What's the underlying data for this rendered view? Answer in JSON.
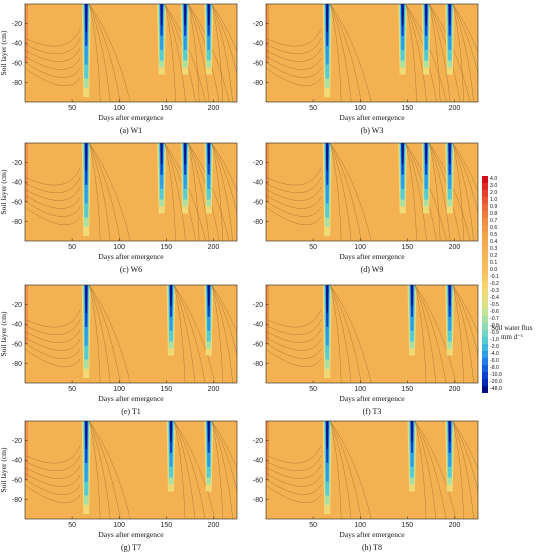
{
  "figure": {
    "legend_title": "Soil water flux",
    "legend_unit": "mm d⁻¹",
    "legend": [
      {
        "label": "4.0",
        "color": "#d10f1a"
      },
      {
        "label": "3.0",
        "color": "#dd2b22"
      },
      {
        "label": "2.0",
        "color": "#e4402b"
      },
      {
        "label": "1.0",
        "color": "#e85634"
      },
      {
        "label": "0.9",
        "color": "#ea6a3a"
      },
      {
        "label": "0.8",
        "color": "#ec7c40"
      },
      {
        "label": "0.7",
        "color": "#ee8b44"
      },
      {
        "label": "0.6",
        "color": "#f09848"
      },
      {
        "label": "0.5",
        "color": "#f2a34b"
      },
      {
        "label": "0.4",
        "color": "#f3ab4e"
      },
      {
        "label": "0.3",
        "color": "#f4b152"
      },
      {
        "label": "0.2",
        "color": "#f5b656"
      },
      {
        "label": "0.1",
        "color": "#f6bb5b"
      },
      {
        "label": "0.0",
        "color": "#f7bf61"
      },
      {
        "label": "-0.1",
        "color": "#f7c868"
      },
      {
        "label": "-0.2",
        "color": "#f5d26f"
      },
      {
        "label": "-0.3",
        "color": "#f0da78"
      },
      {
        "label": "-0.4",
        "color": "#e6df80"
      },
      {
        "label": "-0.5",
        "color": "#d7e28a"
      },
      {
        "label": "-0.6",
        "color": "#c3e396"
      },
      {
        "label": "-0.7",
        "color": "#a9e1a4"
      },
      {
        "label": "-0.8",
        "color": "#8edcb4"
      },
      {
        "label": "-0.9",
        "color": "#72d5c4"
      },
      {
        "label": "-1.0",
        "color": "#57cbd3"
      },
      {
        "label": "-2.0",
        "color": "#3fb6e0"
      },
      {
        "label": "-4.0",
        "color": "#2d9be6"
      },
      {
        "label": "-6.0",
        "color": "#217ee6"
      },
      {
        "label": "-8.0",
        "color": "#1660de"
      },
      {
        "label": "-10.0",
        "color": "#0d43cf"
      },
      {
        "label": "-20.0",
        "color": "#0727b5"
      },
      {
        "label": "-48.0",
        "color": "#020f86"
      }
    ]
  },
  "chart_data": [
    {
      "type": "heatmap",
      "panel": "(a) W1",
      "xlabel": "Days after emergence",
      "ylabel": "Soil layer (cm)",
      "x_ticks": [
        50,
        100,
        150,
        200
      ],
      "y_ticks": [
        -20,
        -40,
        -60,
        -80
      ],
      "xlim": [
        0,
        225
      ],
      "ylim": [
        -100,
        0
      ],
      "irrigation_days": [
        65,
        145,
        170,
        195
      ],
      "show_ylabel": true
    },
    {
      "type": "heatmap",
      "panel": "(b) W3",
      "xlabel": "Days after emergence",
      "ylabel": "",
      "x_ticks": [
        50,
        100,
        150,
        200
      ],
      "y_ticks": [
        -20,
        -40,
        -60,
        -80
      ],
      "xlim": [
        0,
        225
      ],
      "ylim": [
        -100,
        0
      ],
      "irrigation_days": [
        65,
        145,
        170,
        195
      ],
      "show_ylabel": false
    },
    {
      "type": "heatmap",
      "panel": "(c) W6",
      "xlabel": "Days after emergence",
      "ylabel": "Soil layer (cm)",
      "x_ticks": [
        50,
        100,
        150,
        200
      ],
      "y_ticks": [
        -20,
        -40,
        -60,
        -80
      ],
      "xlim": [
        0,
        225
      ],
      "ylim": [
        -100,
        0
      ],
      "irrigation_days": [
        65,
        145,
        170,
        195
      ],
      "show_ylabel": true
    },
    {
      "type": "heatmap",
      "panel": "(d) W9",
      "xlabel": "Days after emergence",
      "ylabel": "",
      "x_ticks": [
        50,
        100,
        150,
        200
      ],
      "y_ticks": [
        -20,
        -40,
        -60,
        -80
      ],
      "xlim": [
        0,
        225
      ],
      "ylim": [
        -100,
        0
      ],
      "irrigation_days": [
        65,
        145,
        170,
        195
      ],
      "show_ylabel": false
    },
    {
      "type": "heatmap",
      "panel": "(e) T1",
      "xlabel": "Days after emergence",
      "ylabel": "Soil layer (cm)",
      "x_ticks": [
        50,
        100,
        150,
        200
      ],
      "y_ticks": [
        -20,
        -40,
        -60,
        -80
      ],
      "xlim": [
        0,
        225
      ],
      "ylim": [
        -100,
        0
      ],
      "irrigation_days": [
        65,
        155,
        195
      ],
      "show_ylabel": true
    },
    {
      "type": "heatmap",
      "panel": "(f) T3",
      "xlabel": "Days after emergence",
      "ylabel": "",
      "x_ticks": [
        50,
        100,
        150,
        200
      ],
      "y_ticks": [
        -20,
        -40,
        -60,
        -80
      ],
      "xlim": [
        0,
        225
      ],
      "ylim": [
        -100,
        0
      ],
      "irrigation_days": [
        65,
        155,
        195
      ],
      "show_ylabel": false
    },
    {
      "type": "heatmap",
      "panel": "(g) T7",
      "xlabel": "Days after emergence",
      "ylabel": "Soil layer (cm)",
      "x_ticks": [
        50,
        100,
        150,
        200
      ],
      "y_ticks": [
        -20,
        -40,
        -60,
        -80
      ],
      "xlim": [
        0,
        225
      ],
      "ylim": [
        -100,
        0
      ],
      "irrigation_days": [
        65,
        155,
        195
      ],
      "show_ylabel": true
    },
    {
      "type": "heatmap",
      "panel": "(h) T8",
      "xlabel": "Days after emergence",
      "ylabel": "",
      "x_ticks": [
        50,
        100,
        150,
        200
      ],
      "y_ticks": [
        -20,
        -40,
        -60,
        -80
      ],
      "xlim": [
        0,
        225
      ],
      "ylim": [
        -100,
        0
      ],
      "irrigation_days": [
        65,
        155,
        195
      ],
      "show_ylabel": false
    }
  ]
}
